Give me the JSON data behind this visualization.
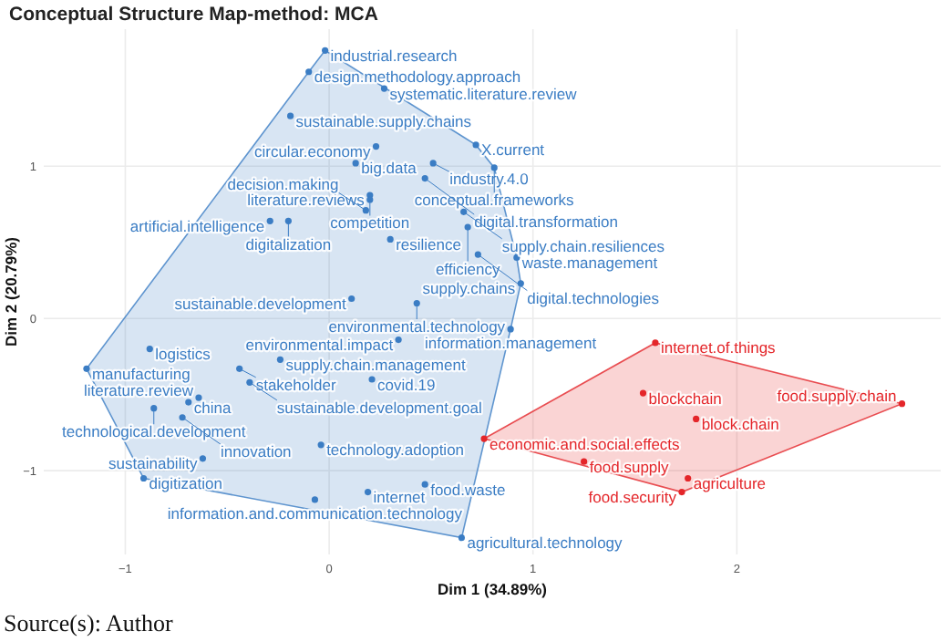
{
  "chart_data": {
    "type": "scatter",
    "title": "Conceptual Structure Map-method: MCA",
    "xlabel": "Dim 1 (34.89%)",
    "ylabel": "Dim 2 (20.79%)",
    "xlim": [
      -1.4,
      3.0
    ],
    "ylim": [
      -1.55,
      1.9
    ],
    "xticks": [
      -1,
      0,
      1,
      2
    ],
    "yticks": [
      -1,
      0,
      1
    ],
    "grid": true,
    "marker": "circle",
    "series": [
      {
        "color": "#3b7dc4",
        "x": [
          -0.02,
          -0.1,
          0.27,
          -0.19,
          0.23,
          0.72,
          0.51,
          0.13,
          0.81,
          0.47,
          0.2,
          0.2,
          0.18,
          -0.29,
          -0.2,
          0.3,
          0.66,
          0.68,
          0.73,
          0.92,
          0.94,
          0.89,
          0.11,
          0.43,
          0.34,
          -0.88,
          -0.24,
          -1.19,
          -0.44,
          0.21,
          -0.39,
          -0.64,
          -0.69,
          -0.86,
          -0.72,
          -0.04,
          -0.62,
          -0.91,
          0.19,
          0.47,
          -0.07,
          0.65
        ],
        "values": [
          1.76,
          1.62,
          1.51,
          1.33,
          1.13,
          1.14,
          1.02,
          1.02,
          0.99,
          0.92,
          0.81,
          0.78,
          0.71,
          0.64,
          0.64,
          0.52,
          0.7,
          0.6,
          0.42,
          0.4,
          0.23,
          -0.07,
          0.13,
          0.1,
          -0.14,
          -0.2,
          -0.27,
          -0.33,
          -0.33,
          -0.4,
          -0.42,
          -0.52,
          -0.55,
          -0.59,
          -0.65,
          -0.83,
          -0.92,
          -1.05,
          -1.14,
          -1.09,
          -1.19,
          -1.44
        ]
      },
      {
        "color": "#e4262a",
        "x": [
          1.6,
          1.54,
          1.8,
          2.81,
          0.76,
          1.25,
          1.76,
          1.73
        ],
        "values": [
          -0.16,
          -0.49,
          -0.66,
          -0.56,
          -0.79,
          -0.94,
          -1.05,
          -1.14
        ]
      }
    ],
    "annotations": [
      {
        "text": "industrial.research",
        "x": -0.02,
        "y": 1.76
      },
      {
        "text": "design.methodology.approach",
        "x": -0.1,
        "y": 1.62
      },
      {
        "text": "systematic.literature.review",
        "x": 0.27,
        "y": 1.51
      },
      {
        "text": "sustainable.supply.chains",
        "x": -0.19,
        "y": 1.33
      },
      {
        "text": "circular.economy",
        "x": 0.23,
        "y": 1.13
      },
      {
        "text": "X.current",
        "x": 0.72,
        "y": 1.14
      },
      {
        "text": "industry.4.0",
        "x": 0.51,
        "y": 1.02
      },
      {
        "text": "big.data",
        "x": 0.13,
        "y": 1.02
      },
      {
        "text": "conceptual.frameworks",
        "x": 0.81,
        "y": 0.99
      },
      {
        "text": "digital.transformation",
        "x": 0.47,
        "y": 0.92
      },
      {
        "text": "literature.reviews",
        "x": 0.2,
        "y": 0.81
      },
      {
        "text": "competition",
        "x": 0.2,
        "y": 0.78
      },
      {
        "text": "decision.making",
        "x": 0.18,
        "y": 0.71
      },
      {
        "text": "artificial.intelligence",
        "x": -0.29,
        "y": 0.64
      },
      {
        "text": "digitalization",
        "x": -0.2,
        "y": 0.64
      },
      {
        "text": "resilience",
        "x": 0.3,
        "y": 0.52
      },
      {
        "text": "supply.chain.resiliences",
        "x": 0.66,
        "y": 0.7
      },
      {
        "text": "efficiency",
        "x": 0.68,
        "y": 0.6
      },
      {
        "text": "digital.technologies",
        "x": 0.73,
        "y": 0.42
      },
      {
        "text": "waste.management",
        "x": 0.92,
        "y": 0.4
      },
      {
        "text": "supply.chains",
        "x": 0.94,
        "y": 0.23
      },
      {
        "text": "information.management",
        "x": 0.89,
        "y": -0.07
      },
      {
        "text": "sustainable.development",
        "x": 0.11,
        "y": 0.13
      },
      {
        "text": "environmental.technology",
        "x": 0.43,
        "y": 0.1
      },
      {
        "text": "environmental.impact",
        "x": 0.34,
        "y": -0.14
      },
      {
        "text": "logistics",
        "x": -0.88,
        "y": -0.2
      },
      {
        "text": "supply.chain.management",
        "x": -0.24,
        "y": -0.27
      },
      {
        "text": "manufacturing",
        "x": -1.19,
        "y": -0.33
      },
      {
        "text": "stakeholder",
        "x": -0.44,
        "y": -0.33
      },
      {
        "text": "covid.19",
        "x": 0.21,
        "y": -0.4
      },
      {
        "text": "sustainable.development.goal",
        "x": -0.39,
        "y": -0.42
      },
      {
        "text": "literature.review",
        "x": -0.64,
        "y": -0.52
      },
      {
        "text": "china",
        "x": -0.69,
        "y": -0.55
      },
      {
        "text": "technological.development",
        "x": -0.86,
        "y": -0.59
      },
      {
        "text": "innovation",
        "x": -0.72,
        "y": -0.65
      },
      {
        "text": "technology.adoption",
        "x": -0.04,
        "y": -0.83
      },
      {
        "text": "sustainability",
        "x": -0.62,
        "y": -0.92
      },
      {
        "text": "digitization",
        "x": -0.91,
        "y": -1.05
      },
      {
        "text": "internet",
        "x": 0.19,
        "y": -1.14
      },
      {
        "text": "food.waste",
        "x": 0.47,
        "y": -1.09
      },
      {
        "text": "information.and.communication.technology",
        "x": -0.07,
        "y": -1.19
      },
      {
        "text": "agricultural.technology",
        "x": 0.65,
        "y": -1.44
      },
      {
        "text": "internet.of.things",
        "x": 1.6,
        "y": -0.16
      },
      {
        "text": "blockchain",
        "x": 1.54,
        "y": -0.49
      },
      {
        "text": "block.chain",
        "x": 1.8,
        "y": -0.66
      },
      {
        "text": "food.supply.chain",
        "x": 2.81,
        "y": -0.56
      },
      {
        "text": "economic.and.social.effects",
        "x": 0.76,
        "y": -0.79
      },
      {
        "text": "food.supply",
        "x": 1.25,
        "y": -0.94
      },
      {
        "text": "agriculture",
        "x": 1.76,
        "y": -1.05
      },
      {
        "text": "food.security",
        "x": 1.73,
        "y": -1.14
      },
      "Source(s): Author"
    ]
  }
}
